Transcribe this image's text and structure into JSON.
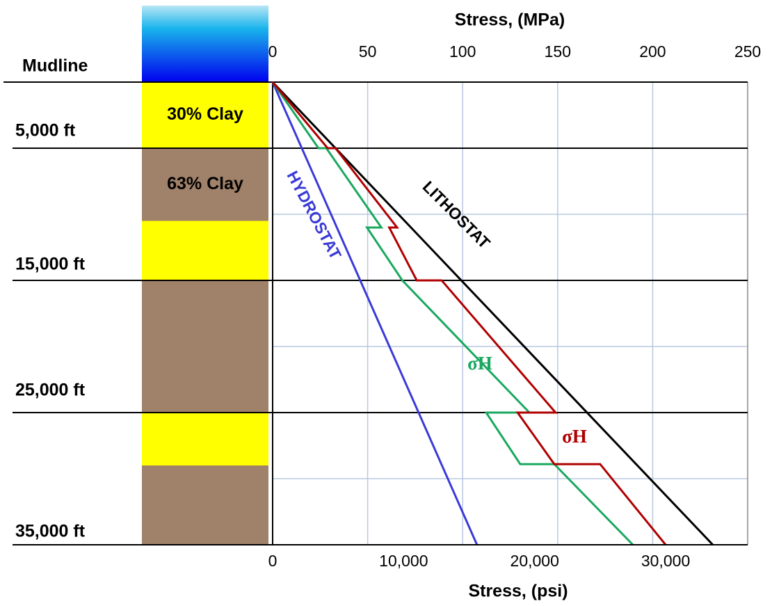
{
  "chart_data": {
    "type": "line",
    "x_label": "Stress, (psi)",
    "x2_label": "Stress, (MPa)",
    "xlim": [
      0,
      36260
    ],
    "xticks": [
      0,
      {
        "value": 10000,
        "label": "10,000"
      },
      {
        "value": 20000,
        "label": "20,000"
      },
      {
        "value": 30000,
        "label": "30,000"
      }
    ],
    "x2lim": [
      0,
      250
    ],
    "x2ticks": [
      0,
      50,
      100,
      150,
      200,
      250
    ],
    "ylim": [
      0,
      35000
    ],
    "y_inverted": true,
    "yticks": [
      {
        "value": 0,
        "label": "Mudline"
      },
      {
        "value": 5000,
        "label": "5,000 ft"
      },
      {
        "value": 15000,
        "label": "15,000 ft"
      },
      {
        "value": 25000,
        "label": "25,000 ft"
      },
      {
        "value": 35000,
        "label": "35,000 ft"
      }
    ],
    "ygrid": [
      10000,
      20000,
      30000
    ],
    "grid": true,
    "layers": [
      {
        "label": "30% Clay",
        "top": 0,
        "bottom": 5000,
        "color": "#ffff00"
      },
      {
        "label": "63% Clay",
        "top": 5000,
        "bottom": 10500,
        "color": "#a0816a"
      },
      {
        "top": 10500,
        "bottom": 15000,
        "color": "#ffff00"
      },
      {
        "top": 15000,
        "bottom": 25000,
        "color": "#a0816a"
      },
      {
        "top": 25000,
        "bottom": 29000,
        "color": "#ffff00"
      },
      {
        "top": 29000,
        "bottom": 35000,
        "color": "#a0816a"
      }
    ],
    "series": [
      {
        "name": "HYDROSTAT",
        "color": "#3a3ad8",
        "x": [
          0,
          15600
        ],
        "values": [
          0,
          35000
        ]
      },
      {
        "name": "LITHOSTAT",
        "color": "#000000",
        "x": [
          0,
          33600
        ],
        "values": [
          0,
          35000
        ]
      },
      {
        "name": "σH",
        "color": "#1aa860",
        "x": [
          0,
          3500,
          4100,
          8300,
          7200,
          9900,
          19600,
          16300,
          18900,
          21500,
          27500
        ],
        "values": [
          0,
          5000,
          5000,
          11000,
          11000,
          15000,
          25000,
          25000,
          28900,
          28900,
          35000
        ]
      },
      {
        "name": "σH",
        "color": "#b00000",
        "x": [
          0,
          4200,
          4800,
          9500,
          8900,
          11000,
          12900,
          21600,
          18700,
          21500,
          25000,
          30000
        ],
        "values": [
          0,
          5000,
          5000,
          11000,
          11000,
          15000,
          15000,
          25000,
          25000,
          28900,
          28900,
          35000
        ]
      }
    ]
  }
}
